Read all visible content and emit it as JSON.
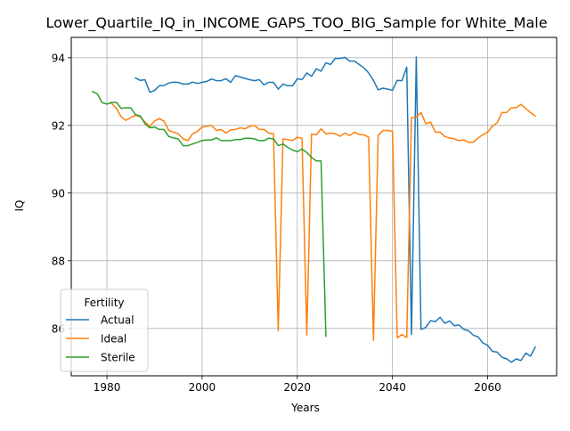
{
  "chart_data": {
    "type": "line",
    "title": "Lower_Quartile_IQ_in_INCOME_GAPS_TOO_BIG_Sample for White_Male",
    "xlabel": "Years",
    "ylabel": "IQ",
    "xlim": [
      1972.5,
      2074.5
    ],
    "ylim": [
      84.6,
      94.6
    ],
    "x_ticks": [
      1980,
      2000,
      2020,
      2040,
      2060
    ],
    "y_ticks": [
      86,
      88,
      90,
      92,
      94
    ],
    "grid": true,
    "legend": {
      "title": "Fertility",
      "position": "lower-left",
      "entries": [
        "Actual",
        "Ideal",
        "Sterile"
      ]
    },
    "series": [
      {
        "name": "Actual",
        "color": "#1f77b4",
        "points": [
          [
            1986,
            93.4
          ],
          [
            1987,
            93.33
          ],
          [
            1988,
            93.35
          ],
          [
            1989,
            92.98
          ],
          [
            1990,
            93.03
          ],
          [
            1991,
            93.17
          ],
          [
            1992,
            93.18
          ],
          [
            1993,
            93.25
          ],
          [
            1994,
            93.28
          ],
          [
            1995,
            93.27
          ],
          [
            1996,
            93.22
          ],
          [
            1997,
            93.22
          ],
          [
            1998,
            93.28
          ],
          [
            1999,
            93.24
          ],
          [
            2000,
            93.27
          ],
          [
            2001,
            93.3
          ],
          [
            2002,
            93.37
          ],
          [
            2003,
            93.32
          ],
          [
            2004,
            93.32
          ],
          [
            2005,
            93.38
          ],
          [
            2006,
            93.27
          ],
          [
            2007,
            93.47
          ],
          [
            2008,
            93.43
          ],
          [
            2009,
            93.39
          ],
          [
            2010,
            93.35
          ],
          [
            2011,
            93.32
          ],
          [
            2012,
            93.35
          ],
          [
            2013,
            93.2
          ],
          [
            2014,
            93.27
          ],
          [
            2015,
            93.27
          ],
          [
            2016,
            93.07
          ],
          [
            2017,
            93.22
          ],
          [
            2018,
            93.17
          ],
          [
            2019,
            93.17
          ],
          [
            2020,
            93.38
          ],
          [
            2021,
            93.35
          ],
          [
            2022,
            93.55
          ],
          [
            2023,
            93.45
          ],
          [
            2024,
            93.67
          ],
          [
            2025,
            93.6
          ],
          [
            2026,
            93.85
          ],
          [
            2027,
            93.8
          ],
          [
            2028,
            93.98
          ],
          [
            2029,
            93.98
          ],
          [
            2030,
            94.01
          ],
          [
            2031,
            93.9
          ],
          [
            2032,
            93.9
          ],
          [
            2033,
            93.8
          ],
          [
            2034,
            93.7
          ],
          [
            2035,
            93.55
          ],
          [
            2036,
            93.33
          ],
          [
            2037,
            93.05
          ],
          [
            2038,
            93.1
          ],
          [
            2039,
            93.07
          ],
          [
            2040,
            93.04
          ],
          [
            2041,
            93.33
          ],
          [
            2042,
            93.32
          ],
          [
            2043,
            93.72
          ],
          [
            2044,
            85.82
          ],
          [
            2045,
            94.02
          ],
          [
            2046,
            85.97
          ],
          [
            2047,
            86.03
          ],
          [
            2048,
            86.23
          ],
          [
            2049,
            86.2
          ],
          [
            2050,
            86.33
          ],
          [
            2051,
            86.15
          ],
          [
            2052,
            86.22
          ],
          [
            2053,
            86.08
          ],
          [
            2054,
            86.1
          ],
          [
            2055,
            85.97
          ],
          [
            2056,
            85.93
          ],
          [
            2057,
            85.8
          ],
          [
            2058,
            85.75
          ],
          [
            2059,
            85.57
          ],
          [
            2060,
            85.5
          ],
          [
            2061,
            85.32
          ],
          [
            2062,
            85.3
          ],
          [
            2063,
            85.15
          ],
          [
            2064,
            85.1
          ],
          [
            2065,
            85.0
          ],
          [
            2066,
            85.1
          ],
          [
            2067,
            85.05
          ],
          [
            2068,
            85.27
          ],
          [
            2069,
            85.18
          ],
          [
            2070,
            85.45
          ]
        ]
      },
      {
        "name": "Ideal",
        "color": "#ff7f0e",
        "points": [
          [
            1981,
            92.65
          ],
          [
            1982,
            92.5
          ],
          [
            1983,
            92.25
          ],
          [
            1984,
            92.15
          ],
          [
            1985,
            92.23
          ],
          [
            1986,
            92.3
          ],
          [
            1987,
            92.25
          ],
          [
            1988,
            92.1
          ],
          [
            1989,
            91.97
          ],
          [
            1990,
            92.13
          ],
          [
            1991,
            92.2
          ],
          [
            1992,
            92.12
          ],
          [
            1993,
            91.85
          ],
          [
            1994,
            91.8
          ],
          [
            1995,
            91.75
          ],
          [
            1996,
            91.6
          ],
          [
            1997,
            91.55
          ],
          [
            1998,
            91.75
          ],
          [
            1999,
            91.82
          ],
          [
            2000,
            91.95
          ],
          [
            2001,
            91.98
          ],
          [
            2002,
            92.0
          ],
          [
            2003,
            91.85
          ],
          [
            2004,
            91.88
          ],
          [
            2005,
            91.77
          ],
          [
            2006,
            91.87
          ],
          [
            2007,
            91.88
          ],
          [
            2008,
            91.93
          ],
          [
            2009,
            91.9
          ],
          [
            2010,
            91.97
          ],
          [
            2011,
            92.0
          ],
          [
            2012,
            91.88
          ],
          [
            2013,
            91.88
          ],
          [
            2014,
            91.77
          ],
          [
            2015,
            91.75
          ],
          [
            2016,
            85.93
          ],
          [
            2017,
            91.6
          ],
          [
            2018,
            91.58
          ],
          [
            2019,
            91.55
          ],
          [
            2020,
            91.65
          ],
          [
            2021,
            91.62
          ],
          [
            2022,
            85.8
          ],
          [
            2023,
            91.75
          ],
          [
            2024,
            91.72
          ],
          [
            2025,
            91.9
          ],
          [
            2026,
            91.75
          ],
          [
            2027,
            91.77
          ],
          [
            2028,
            91.75
          ],
          [
            2029,
            91.68
          ],
          [
            2030,
            91.77
          ],
          [
            2031,
            91.7
          ],
          [
            2032,
            91.8
          ],
          [
            2033,
            91.73
          ],
          [
            2034,
            91.72
          ],
          [
            2035,
            91.65
          ],
          [
            2036,
            85.65
          ],
          [
            2037,
            91.7
          ],
          [
            2038,
            91.85
          ],
          [
            2039,
            91.85
          ],
          [
            2040,
            91.82
          ],
          [
            2041,
            85.72
          ],
          [
            2042,
            85.82
          ],
          [
            2043,
            85.73
          ],
          [
            2044,
            92.22
          ],
          [
            2045,
            92.25
          ],
          [
            2046,
            92.38
          ],
          [
            2047,
            92.05
          ],
          [
            2048,
            92.1
          ],
          [
            2049,
            91.8
          ],
          [
            2050,
            91.8
          ],
          [
            2051,
            91.67
          ],
          [
            2052,
            91.63
          ],
          [
            2053,
            91.6
          ],
          [
            2054,
            91.55
          ],
          [
            2055,
            91.57
          ],
          [
            2056,
            91.5
          ],
          [
            2057,
            91.5
          ],
          [
            2058,
            91.63
          ],
          [
            2059,
            91.72
          ],
          [
            2060,
            91.8
          ],
          [
            2061,
            91.98
          ],
          [
            2062,
            92.08
          ],
          [
            2063,
            92.38
          ],
          [
            2064,
            92.38
          ],
          [
            2065,
            92.52
          ],
          [
            2066,
            92.52
          ],
          [
            2067,
            92.62
          ],
          [
            2068,
            92.5
          ],
          [
            2069,
            92.38
          ],
          [
            2070,
            92.28
          ]
        ]
      },
      {
        "name": "Sterile",
        "color": "#2ca02c",
        "points": [
          [
            1977,
            93.0
          ],
          [
            1978,
            92.93
          ],
          [
            1979,
            92.67
          ],
          [
            1980,
            92.63
          ],
          [
            1981,
            92.68
          ],
          [
            1982,
            92.68
          ],
          [
            1983,
            92.5
          ],
          [
            1984,
            92.52
          ],
          [
            1985,
            92.52
          ],
          [
            1986,
            92.32
          ],
          [
            1987,
            92.28
          ],
          [
            1988,
            92.05
          ],
          [
            1989,
            91.93
          ],
          [
            1990,
            91.95
          ],
          [
            1991,
            91.88
          ],
          [
            1992,
            91.88
          ],
          [
            1993,
            91.67
          ],
          [
            1994,
            91.63
          ],
          [
            1995,
            91.6
          ],
          [
            1996,
            91.4
          ],
          [
            1997,
            91.4
          ],
          [
            1998,
            91.45
          ],
          [
            1999,
            91.5
          ],
          [
            2000,
            91.55
          ],
          [
            2001,
            91.57
          ],
          [
            2002,
            91.57
          ],
          [
            2003,
            91.63
          ],
          [
            2004,
            91.55
          ],
          [
            2005,
            91.55
          ],
          [
            2006,
            91.55
          ],
          [
            2007,
            91.58
          ],
          [
            2008,
            91.58
          ],
          [
            2009,
            91.62
          ],
          [
            2010,
            91.62
          ],
          [
            2011,
            91.6
          ],
          [
            2012,
            91.55
          ],
          [
            2013,
            91.55
          ],
          [
            2014,
            91.62
          ],
          [
            2015,
            91.6
          ],
          [
            2016,
            91.4
          ],
          [
            2017,
            91.45
          ],
          [
            2018,
            91.35
          ],
          [
            2019,
            91.27
          ],
          [
            2020,
            91.22
          ],
          [
            2021,
            91.3
          ],
          [
            2022,
            91.2
          ],
          [
            2023,
            91.05
          ],
          [
            2024,
            90.95
          ],
          [
            2025,
            90.95
          ],
          [
            2026,
            85.77
          ]
        ]
      }
    ]
  }
}
